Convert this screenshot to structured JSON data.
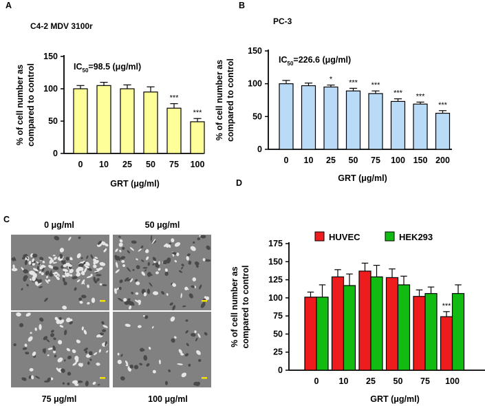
{
  "panels": {
    "A": {
      "letter": "A",
      "title": "C4-2 MDV 3100r",
      "ic50": {
        "prefix": "IC",
        "sub": "50",
        "value": "=98.5 (μg/ml)"
      },
      "chart_data": {
        "type": "bar",
        "categories": [
          "0",
          "10",
          "25",
          "50",
          "75",
          "100"
        ],
        "values": [
          100,
          105,
          100,
          95,
          70,
          49
        ],
        "errors": [
          5,
          5,
          6,
          8,
          7,
          5
        ],
        "significance": [
          "",
          "",
          "",
          "",
          "***",
          "***"
        ],
        "ylim": [
          0,
          150
        ],
        "yticks": [
          "0",
          "50",
          "100",
          "150"
        ],
        "ylabel_lines": [
          "% of cell number as",
          "compared to control"
        ],
        "xlabel": "GRT (μg/ml)",
        "bar_color": "#ffff99"
      }
    },
    "B": {
      "letter": "B",
      "title": "PC-3",
      "ic50": {
        "prefix": "IC",
        "sub": "50",
        "value": "=226.6 (μg/ml)"
      },
      "chart_data": {
        "type": "bar",
        "categories": [
          "0",
          "10",
          "25",
          "50",
          "75",
          "100",
          "150",
          "200"
        ],
        "values": [
          100,
          97,
          95,
          89,
          85,
          73,
          69,
          55
        ],
        "errors": [
          5,
          4,
          3,
          4,
          4,
          4,
          3,
          4
        ],
        "significance": [
          "",
          "",
          "*",
          "***",
          "***",
          "***",
          "***",
          "***"
        ],
        "ylim": [
          0,
          150
        ],
        "yticks": [
          "0",
          "50",
          "100",
          "150"
        ],
        "ylabel_lines": [
          "% of cell number as",
          "compared to control"
        ],
        "xlabel": "GRT (μg/ml)",
        "bar_color": "#b9dbf7"
      }
    },
    "C": {
      "letter": "C",
      "images": [
        {
          "label": "0 μg/ml"
        },
        {
          "label": "50 μg/ml"
        },
        {
          "label": "75 μg/ml"
        },
        {
          "label": "100 μg/ml"
        }
      ]
    },
    "D": {
      "letter": "D",
      "chart_data": {
        "type": "bar",
        "categories": [
          "0",
          "10",
          "25",
          "50",
          "75",
          "100"
        ],
        "series": [
          {
            "name": "HUVEC",
            "color": "#ee1c1c",
            "values": [
              101,
              129,
              137,
              128,
              102,
              74
            ],
            "errors": [
              7,
              10,
              11,
              12,
              9,
              7
            ]
          },
          {
            "name": "HEK293",
            "color": "#11bb11",
            "values": [
              101,
              117,
              129,
              118,
              106,
              106
            ],
            "errors": [
              17,
              16,
              16,
              12,
              9,
              12
            ]
          }
        ],
        "significance": [
          {
            "category": "100",
            "series": "HUVEC",
            "text": "***"
          }
        ],
        "ylim": [
          0,
          175
        ],
        "yticks": [
          "0",
          "25",
          "50",
          "75",
          "100",
          "125",
          "150",
          "175"
        ],
        "ylabel_lines": [
          "% of cell number as",
          "compared to control"
        ],
        "xlabel": "GRT (μg/ml)"
      }
    }
  },
  "colors": {
    "axis": "#000000",
    "scalebar": "#f4e400"
  }
}
